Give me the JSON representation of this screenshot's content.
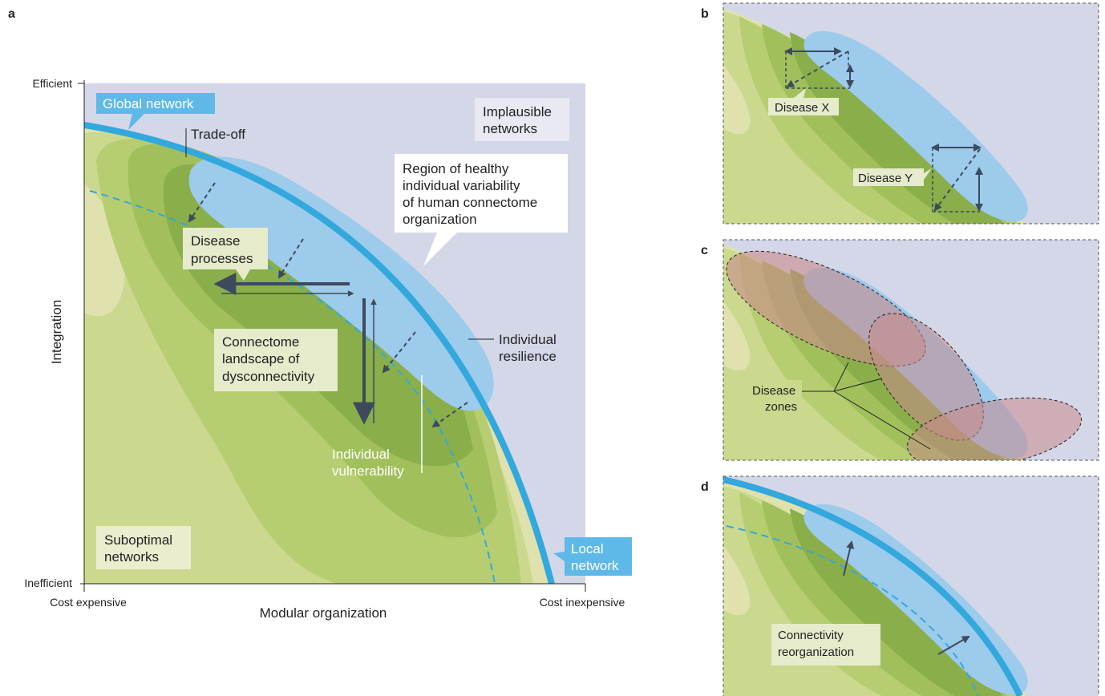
{
  "panels": {
    "a": {
      "letter": "a",
      "axes": {
        "y_label": "Integration",
        "x_label": "Modular organization",
        "y_top": "Efficient",
        "y_bottom": "Inefficient",
        "x_left": "Cost expensive",
        "x_right": "Cost inexpensive"
      },
      "labels": {
        "global_network": "Global network",
        "local_network_1": "Local",
        "local_network_2": "network",
        "implausible_1": "Implausible",
        "implausible_2": "networks",
        "trade_off": "Trade-off",
        "healthy_1": "Region of healthy",
        "healthy_2": "individual variability",
        "healthy_3": "of human connectome",
        "healthy_4": "organization",
        "disease_1": "Disease",
        "disease_2": "processes",
        "landscape_1": "Connectome",
        "landscape_2": "landscape of",
        "landscape_3": "dysconnectivity",
        "resilience_1": "Individual",
        "resilience_2": "resilience",
        "vulnerability_1": "Individual",
        "vulnerability_2": "vulnerability",
        "suboptimal_1": "Suboptimal",
        "suboptimal_2": "networks"
      }
    },
    "b": {
      "letter": "b",
      "disease_x": "Disease X",
      "disease_y": "Disease Y"
    },
    "c": {
      "letter": "c",
      "zones_1": "Disease",
      "zones_2": "zones"
    },
    "d": {
      "letter": "d",
      "reorg_1": "Connectivity",
      "reorg_2": "reorganization"
    }
  },
  "colors": {
    "background_plane": "#d4d7e8",
    "global_network": "#33a8dd",
    "healthy_region": "#9ccbec",
    "contour_1": "#e0e2ae",
    "contour_2": "#cbd98e",
    "contour_3": "#b6ce71",
    "contour_4": "#a1c05c",
    "contour_5": "#8aae4a",
    "arrow": "#3d4a5c",
    "disease_zone": "#c98a8c"
  }
}
